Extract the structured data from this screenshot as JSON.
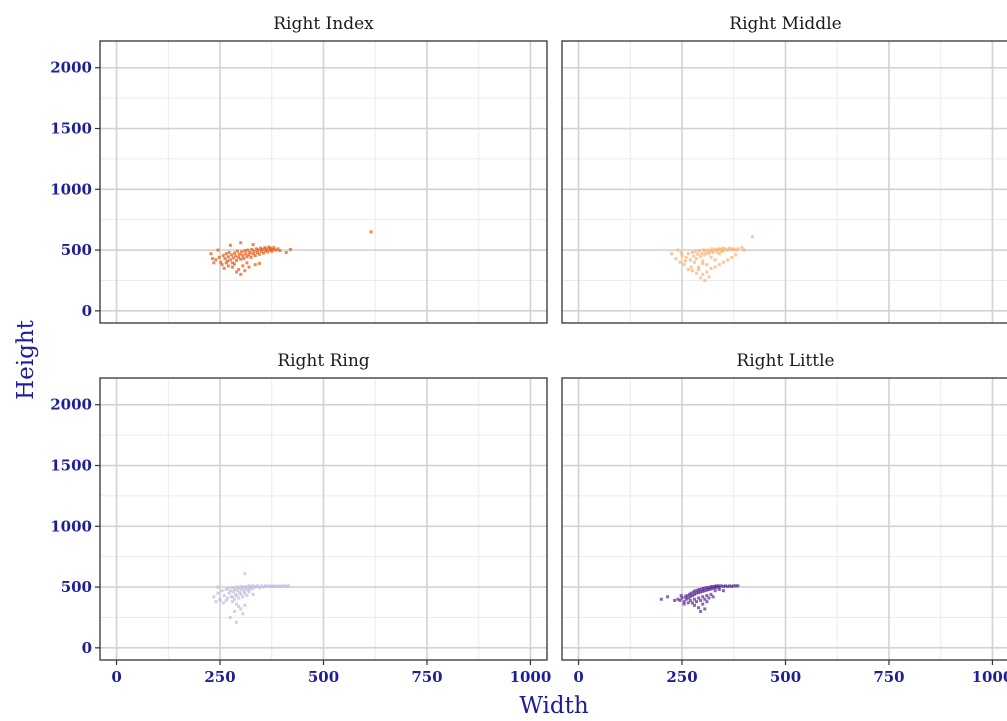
{
  "chart_data": {
    "type": "scatter",
    "xlabel": "Width",
    "ylabel": "Height",
    "xlim": [
      -40,
      1040
    ],
    "ylim": [
      -100,
      2220
    ],
    "x_ticks": [
      0,
      250,
      500,
      750,
      1000
    ],
    "y_ticks": [
      0,
      500,
      1000,
      1500,
      2000
    ],
    "x_tick_labels": [
      "0",
      "250",
      "500",
      "750",
      "1000"
    ],
    "y_tick_labels": [
      "0",
      "500",
      "1000",
      "1500",
      "2000"
    ],
    "grid": true,
    "panels": [
      {
        "label": "Right Index",
        "color": "#e6550d",
        "points": [
          [
            240,
            420
          ],
          [
            248,
            440
          ],
          [
            252,
            400
          ],
          [
            258,
            455
          ],
          [
            262,
            430
          ],
          [
            265,
            470
          ],
          [
            268,
            410
          ],
          [
            270,
            445
          ],
          [
            272,
            480
          ],
          [
            275,
            420
          ],
          [
            278,
            460
          ],
          [
            280,
            395
          ],
          [
            282,
            435
          ],
          [
            285,
            475
          ],
          [
            288,
            450
          ],
          [
            290,
            415
          ],
          [
            292,
            490
          ],
          [
            295,
            440
          ],
          [
            297,
            465
          ],
          [
            300,
            425
          ],
          [
            302,
            485
          ],
          [
            305,
            455
          ],
          [
            307,
            430
          ],
          [
            310,
            495
          ],
          [
            312,
            470
          ],
          [
            315,
            445
          ],
          [
            317,
            500
          ],
          [
            320,
            460
          ],
          [
            322,
            480
          ],
          [
            325,
            440
          ],
          [
            327,
            505
          ],
          [
            330,
            470
          ],
          [
            332,
            490
          ],
          [
            335,
            455
          ],
          [
            338,
            510
          ],
          [
            340,
            480
          ],
          [
            342,
            500
          ],
          [
            345,
            465
          ],
          [
            348,
            515
          ],
          [
            350,
            490
          ],
          [
            352,
            505
          ],
          [
            355,
            475
          ],
          [
            358,
            520
          ],
          [
            360,
            495
          ],
          [
            362,
            510
          ],
          [
            365,
            485
          ],
          [
            368,
            525
          ],
          [
            370,
            500
          ],
          [
            372,
            515
          ],
          [
            375,
            490
          ],
          [
            378,
            505
          ],
          [
            380,
            520
          ],
          [
            385,
            500
          ],
          [
            390,
            510
          ],
          [
            395,
            495
          ],
          [
            280,
            360
          ],
          [
            295,
            340
          ],
          [
            300,
            300
          ],
          [
            310,
            330
          ],
          [
            270,
            370
          ],
          [
            255,
            380
          ],
          [
            260,
            350
          ],
          [
            290,
            320
          ],
          [
            320,
            360
          ],
          [
            335,
            380
          ],
          [
            345,
            390
          ],
          [
            305,
            370
          ],
          [
            285,
            385
          ],
          [
            315,
            395
          ],
          [
            265,
            395
          ],
          [
            228,
            470
          ],
          [
            235,
            395
          ],
          [
            245,
            500
          ],
          [
            232,
            430
          ],
          [
            410,
            480
          ],
          [
            420,
            505
          ],
          [
            300,
            560
          ],
          [
            330,
            545
          ],
          [
            275,
            540
          ],
          [
            615,
            650
          ]
        ]
      },
      {
        "label": "Right Middle",
        "color": "#fdae6b",
        "points": [
          [
            225,
            470
          ],
          [
            235,
            430
          ],
          [
            245,
            400
          ],
          [
            250,
            455
          ],
          [
            255,
            380
          ],
          [
            260,
            440
          ],
          [
            265,
            470
          ],
          [
            270,
            420
          ],
          [
            272,
            360
          ],
          [
            275,
            480
          ],
          [
            278,
            450
          ],
          [
            280,
            400
          ],
          [
            282,
            490
          ],
          [
            285,
            430
          ],
          [
            288,
            465
          ],
          [
            290,
            340
          ],
          [
            292,
            495
          ],
          [
            295,
            445
          ],
          [
            298,
            470
          ],
          [
            300,
            410
          ],
          [
            302,
            500
          ],
          [
            305,
            460
          ],
          [
            308,
            480
          ],
          [
            310,
            380
          ],
          [
            312,
            500
          ],
          [
            315,
            470
          ],
          [
            318,
            490
          ],
          [
            320,
            440
          ],
          [
            322,
            510
          ],
          [
            325,
            480
          ],
          [
            328,
            500
          ],
          [
            330,
            420
          ],
          [
            332,
            505
          ],
          [
            335,
            485
          ],
          [
            338,
            510
          ],
          [
            340,
            470
          ],
          [
            342,
            505
          ],
          [
            345,
            490
          ],
          [
            348,
            515
          ],
          [
            350,
            495
          ],
          [
            355,
            510
          ],
          [
            360,
            500
          ],
          [
            365,
            515
          ],
          [
            370,
            505
          ],
          [
            375,
            510
          ],
          [
            380,
            500
          ],
          [
            385,
            510
          ],
          [
            300,
            300
          ],
          [
            310,
            320
          ],
          [
            320,
            350
          ],
          [
            330,
            360
          ],
          [
            295,
            270
          ],
          [
            305,
            250
          ],
          [
            285,
            310
          ],
          [
            315,
            280
          ],
          [
            340,
            380
          ],
          [
            350,
            400
          ],
          [
            360,
            420
          ],
          [
            370,
            440
          ],
          [
            380,
            460
          ],
          [
            290,
            360
          ],
          [
            300,
            390
          ],
          [
            275,
            330
          ],
          [
            265,
            340
          ],
          [
            258,
            410
          ],
          [
            248,
            480
          ],
          [
            240,
            500
          ],
          [
            420,
            610
          ],
          [
            400,
            500
          ],
          [
            395,
            520
          ]
        ]
      },
      {
        "label": "Right Ring",
        "color": "#bcbddc",
        "points": [
          [
            235,
            420
          ],
          [
            240,
            380
          ],
          [
            245,
            450
          ],
          [
            250,
            400
          ],
          [
            255,
            470
          ],
          [
            260,
            430
          ],
          [
            265,
            480
          ],
          [
            268,
            410
          ],
          [
            270,
            490
          ],
          [
            272,
            450
          ],
          [
            275,
            470
          ],
          [
            278,
            420
          ],
          [
            280,
            495
          ],
          [
            282,
            460
          ],
          [
            285,
            480
          ],
          [
            288,
            440
          ],
          [
            290,
            500
          ],
          [
            292,
            470
          ],
          [
            295,
            490
          ],
          [
            298,
            455
          ],
          [
            300,
            505
          ],
          [
            302,
            480
          ],
          [
            305,
            495
          ],
          [
            308,
            465
          ],
          [
            310,
            505
          ],
          [
            312,
            485
          ],
          [
            315,
            500
          ],
          [
            318,
            475
          ],
          [
            320,
            510
          ],
          [
            322,
            490
          ],
          [
            325,
            505
          ],
          [
            328,
            485
          ],
          [
            330,
            510
          ],
          [
            335,
            500
          ],
          [
            340,
            510
          ],
          [
            345,
            495
          ],
          [
            350,
            510
          ],
          [
            355,
            500
          ],
          [
            360,
            510
          ],
          [
            365,
            505
          ],
          [
            370,
            510
          ],
          [
            375,
            505
          ],
          [
            380,
            510
          ],
          [
            385,
            505
          ],
          [
            390,
            510
          ],
          [
            395,
            505
          ],
          [
            400,
            510
          ],
          [
            405,
            510
          ],
          [
            410,
            505
          ],
          [
            415,
            510
          ],
          [
            280,
            420
          ],
          [
            285,
            400
          ],
          [
            290,
            430
          ],
          [
            295,
            410
          ],
          [
            300,
            440
          ],
          [
            305,
            420
          ],
          [
            310,
            450
          ],
          [
            315,
            430
          ],
          [
            290,
            360
          ],
          [
            295,
            340
          ],
          [
            285,
            300
          ],
          [
            300,
            320
          ],
          [
            275,
            250
          ],
          [
            290,
            210
          ],
          [
            305,
            280
          ],
          [
            310,
            350
          ],
          [
            280,
            380
          ],
          [
            265,
            390
          ],
          [
            320,
            460
          ],
          [
            330,
            440
          ],
          [
            310,
            610
          ],
          [
            245,
            500
          ],
          [
            250,
            390
          ],
          [
            258,
            370
          ]
        ]
      },
      {
        "label": "Right Little",
        "color": "#54278f",
        "points": [
          [
            240,
            400
          ],
          [
            245,
            390
          ],
          [
            250,
            410
          ],
          [
            255,
            380
          ],
          [
            258,
            420
          ],
          [
            260,
            400
          ],
          [
            262,
            430
          ],
          [
            265,
            410
          ],
          [
            268,
            440
          ],
          [
            270,
            420
          ],
          [
            272,
            450
          ],
          [
            275,
            430
          ],
          [
            278,
            460
          ],
          [
            280,
            440
          ],
          [
            282,
            470
          ],
          [
            285,
            450
          ],
          [
            288,
            475
          ],
          [
            290,
            455
          ],
          [
            292,
            480
          ],
          [
            295,
            460
          ],
          [
            298,
            485
          ],
          [
            300,
            465
          ],
          [
            302,
            490
          ],
          [
            305,
            470
          ],
          [
            308,
            495
          ],
          [
            310,
            475
          ],
          [
            312,
            495
          ],
          [
            315,
            480
          ],
          [
            318,
            500
          ],
          [
            320,
            485
          ],
          [
            322,
            505
          ],
          [
            325,
            490
          ],
          [
            328,
            505
          ],
          [
            330,
            495
          ],
          [
            332,
            510
          ],
          [
            335,
            500
          ],
          [
            338,
            510
          ],
          [
            340,
            500
          ],
          [
            345,
            510
          ],
          [
            350,
            505
          ],
          [
            355,
            510
          ],
          [
            360,
            505
          ],
          [
            365,
            510
          ],
          [
            370,
            505
          ],
          [
            375,
            510
          ],
          [
            380,
            510
          ],
          [
            385,
            510
          ],
          [
            270,
            390
          ],
          [
            275,
            370
          ],
          [
            280,
            400
          ],
          [
            285,
            380
          ],
          [
            290,
            410
          ],
          [
            295,
            390
          ],
          [
            300,
            420
          ],
          [
            305,
            400
          ],
          [
            310,
            430
          ],
          [
            315,
            410
          ],
          [
            320,
            440
          ],
          [
            325,
            420
          ],
          [
            280,
            350
          ],
          [
            290,
            330
          ],
          [
            300,
            360
          ],
          [
            310,
            380
          ],
          [
            295,
            300
          ],
          [
            305,
            320
          ],
          [
            265,
            370
          ],
          [
            255,
            360
          ],
          [
            248,
            430
          ],
          [
            232,
            390
          ],
          [
            200,
            400
          ],
          [
            215,
            420
          ],
          [
            330,
            470
          ],
          [
            340,
            480
          ],
          [
            350,
            470
          ]
        ]
      }
    ]
  }
}
